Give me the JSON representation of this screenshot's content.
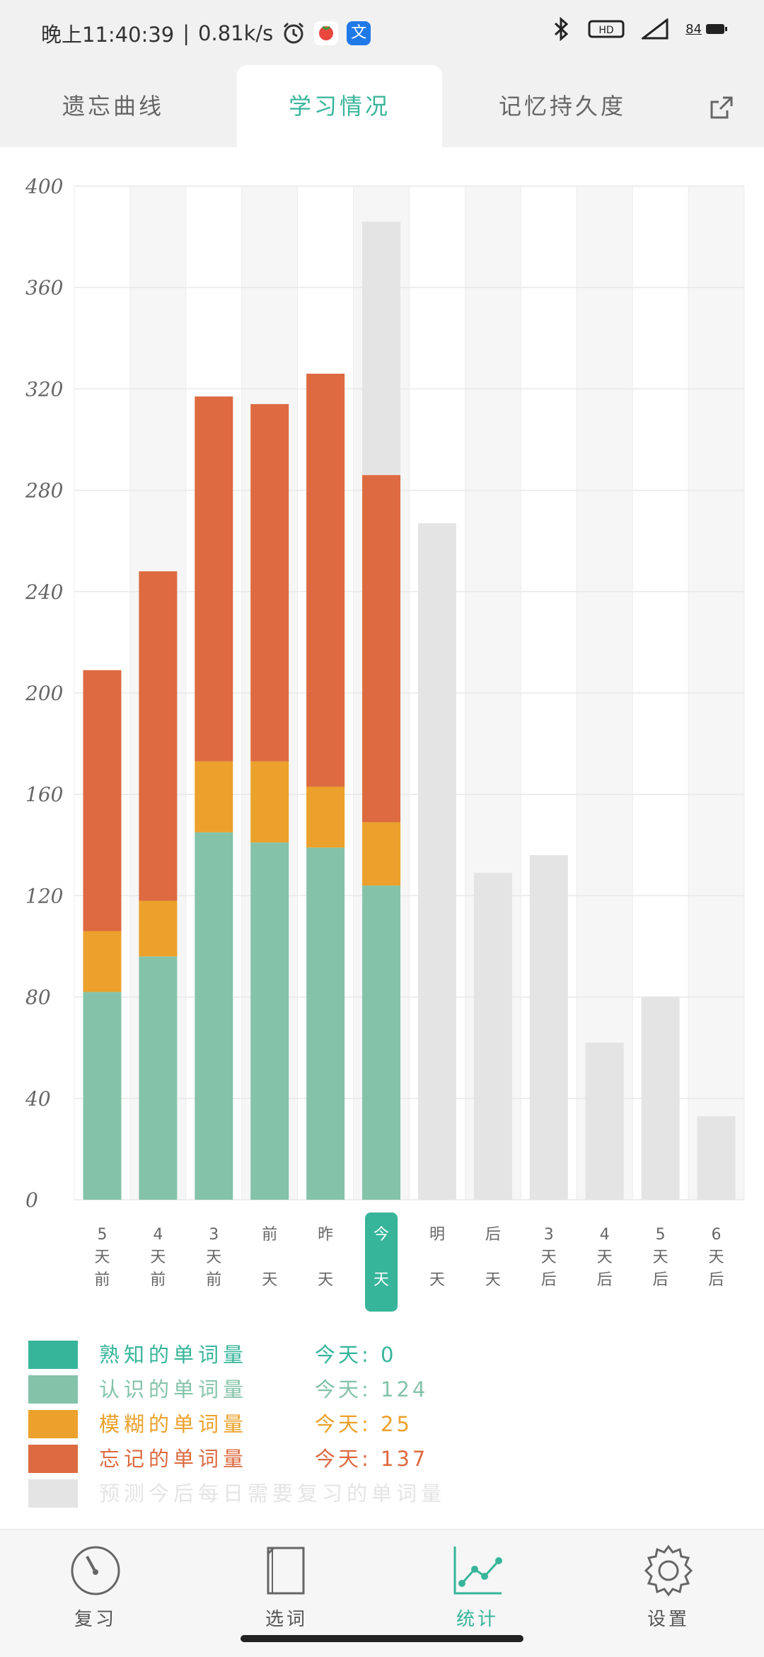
{
  "status": {
    "time": "晚上11:40:39",
    "speed": "0.81k/s",
    "battery": "84"
  },
  "tabs": [
    {
      "label": "遗忘曲线"
    },
    {
      "label": "学习情况"
    },
    {
      "label": "记忆持久度"
    }
  ],
  "colors": {
    "familiar": "#37b59a",
    "known": "#84c3a9",
    "fuzzy": "#eba12b",
    "forgot": "#dd6a41",
    "forecast": "#e4e4e4",
    "accent": "#37b59a"
  },
  "chart_data": {
    "type": "bar",
    "stacked": true,
    "ylim": [
      0,
      400
    ],
    "yticks": [
      "0",
      "40",
      "80",
      "120",
      "160",
      "200",
      "240",
      "280",
      "320",
      "360",
      "400"
    ],
    "categories": [
      [
        "5",
        "天",
        "前"
      ],
      [
        "4",
        "天",
        "前"
      ],
      [
        "3",
        "天",
        "前"
      ],
      [
        "前",
        "",
        "天"
      ],
      [
        "昨",
        "",
        "天"
      ],
      [
        "今",
        "",
        "天"
      ],
      [
        "明",
        "",
        "天"
      ],
      [
        "后",
        "",
        "天"
      ],
      [
        "3",
        "天",
        "后"
      ],
      [
        "4",
        "天",
        "后"
      ],
      [
        "5",
        "天",
        "后"
      ],
      [
        "6",
        "天",
        "后"
      ]
    ],
    "highlight_index": 5,
    "series": [
      {
        "key": "familiar",
        "values": [
          0,
          0,
          0,
          0,
          0,
          0,
          0,
          0,
          0,
          0,
          0,
          0
        ]
      },
      {
        "key": "known",
        "values": [
          82,
          96,
          145,
          141,
          139,
          124,
          0,
          0,
          0,
          0,
          0,
          0
        ]
      },
      {
        "key": "fuzzy",
        "values": [
          24,
          22,
          28,
          32,
          24,
          25,
          0,
          0,
          0,
          0,
          0,
          0
        ]
      },
      {
        "key": "forgot",
        "values": [
          103,
          130,
          144,
          141,
          163,
          137,
          0,
          0,
          0,
          0,
          0,
          0
        ]
      },
      {
        "key": "forecast",
        "values": [
          0,
          0,
          0,
          0,
          0,
          100,
          267,
          129,
          136,
          62,
          80,
          33
        ]
      }
    ]
  },
  "legend": [
    {
      "key": "familiar",
      "label": "熟知的单词量",
      "value": "今天: 0"
    },
    {
      "key": "known",
      "label": "认识的单词量",
      "value": "今天: 124"
    },
    {
      "key": "fuzzy",
      "label": "模糊的单词量",
      "value": "今天: 25"
    },
    {
      "key": "forgot",
      "label": "忘记的单词量",
      "value": "今天: 137"
    },
    {
      "key": "forecast",
      "label": "预测今后每日需要复习的单词量",
      "value": ""
    }
  ],
  "nav": [
    {
      "label": "复习",
      "icon": "gauge-icon"
    },
    {
      "label": "选词",
      "icon": "book-icon"
    },
    {
      "label": "统计",
      "icon": "line-chart-icon"
    },
    {
      "label": "设置",
      "icon": "gear-icon"
    }
  ]
}
